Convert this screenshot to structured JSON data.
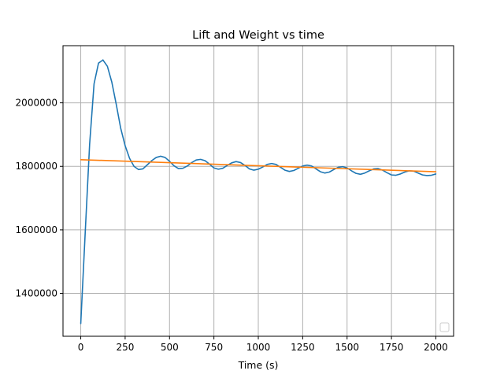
{
  "chart_data": {
    "type": "line",
    "title": "Lift and Weight vs time",
    "xlabel": "Time (s)",
    "ylabel": "",
    "xlim": [
      -100,
      2100
    ],
    "ylim": [
      1265000,
      2180000
    ],
    "xticks": [
      0,
      250,
      500,
      750,
      1000,
      1250,
      1500,
      1750,
      2000
    ],
    "yticks": [
      1400000,
      1600000,
      1800000,
      2000000
    ],
    "xtick_labels": [
      "0",
      "250",
      "500",
      "750",
      "1000",
      "1250",
      "1500",
      "1750",
      "2000"
    ],
    "ytick_labels": [
      "1400000",
      "1600000",
      "1800000",
      "2000000"
    ],
    "grid": true,
    "legend": "lower-right",
    "legend_entries": [],
    "series": [
      {
        "color": "#1f77b4",
        "x": [
          0,
          25,
          50,
          75,
          100,
          125,
          150,
          175,
          200,
          225,
          250,
          275,
          300,
          325,
          350,
          375,
          400,
          425,
          450,
          475,
          500,
          525,
          550,
          575,
          600,
          625,
          650,
          675,
          700,
          725,
          750,
          775,
          800,
          825,
          850,
          875,
          900,
          925,
          950,
          975,
          1000,
          1025,
          1050,
          1075,
          1100,
          1125,
          1150,
          1175,
          1200,
          1225,
          1250,
          1275,
          1300,
          1325,
          1350,
          1375,
          1400,
          1425,
          1450,
          1475,
          1500,
          1525,
          1550,
          1575,
          1600,
          1625,
          1650,
          1675,
          1700,
          1725,
          1750,
          1775,
          1800,
          1825,
          1850,
          1875,
          1900,
          1925,
          1950,
          1975,
          2000
        ],
        "y": [
          1305000,
          1590000,
          1870000,
          2060000,
          2125000,
          2135000,
          2115000,
          2065000,
          1995000,
          1920000,
          1865000,
          1825000,
          1800000,
          1790000,
          1792000,
          1805000,
          1818000,
          1828000,
          1832000,
          1828000,
          1816000,
          1802000,
          1793000,
          1794000,
          1801000,
          1812000,
          1820000,
          1822000,
          1818000,
          1807000,
          1795000,
          1791000,
          1794000,
          1803000,
          1811000,
          1815000,
          1812000,
          1803000,
          1792000,
          1788000,
          1791000,
          1798000,
          1806000,
          1809000,
          1806000,
          1797000,
          1788000,
          1784000,
          1787000,
          1794000,
          1801000,
          1804000,
          1801000,
          1792000,
          1783000,
          1779000,
          1782000,
          1790000,
          1797000,
          1799000,
          1795000,
          1786000,
          1778000,
          1775000,
          1779000,
          1786000,
          1792000,
          1793000,
          1788000,
          1780000,
          1773000,
          1772000,
          1776000,
          1782000,
          1786000,
          1785000,
          1779000,
          1773000,
          1771000,
          1772000,
          1776000
        ]
      },
      {
        "color": "#ff7f0e",
        "x": [
          0,
          2000
        ],
        "y": [
          1821000,
          1783000
        ]
      }
    ]
  }
}
